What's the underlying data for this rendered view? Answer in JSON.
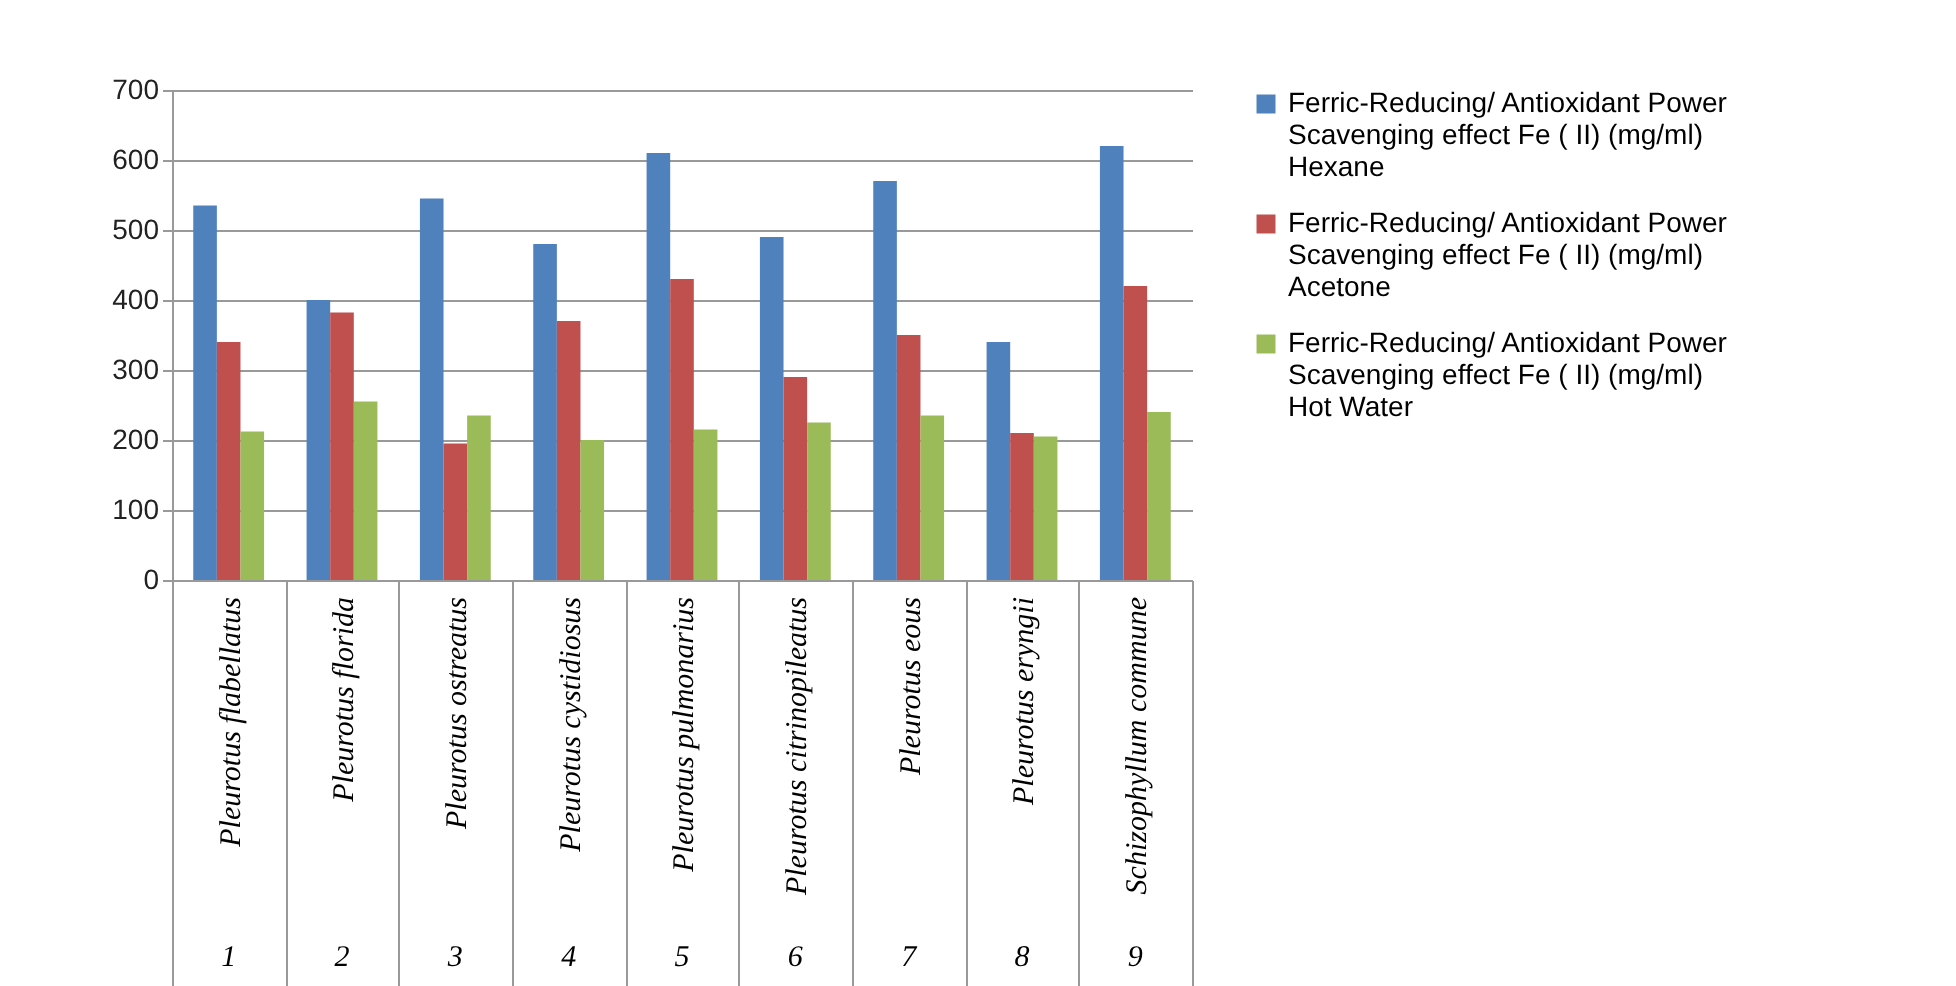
{
  "chart_data": {
    "type": "bar",
    "categories": [
      "Pleurotus flabellatus",
      "Pleurotus florida",
      "Pleurotus ostreatus",
      "Pleurotus cystidiosus",
      "Pleurotus pulmonarius",
      "Pleurotus citrinopileatus",
      "Pleurotus eous",
      "Pleurotus eryngii",
      "Schizophyllum commune"
    ],
    "annotations": [
      "1",
      "2",
      "3",
      "4",
      "5",
      "6",
      "7",
      "8",
      "9"
    ],
    "series": [
      {
        "name": "Ferric-Reducing/ Antioxidant Power  Scavenging effect  Fe ( II) (mg/ml)  Hexane",
        "color": "#4f81bd",
        "values": [
          535,
          400,
          545,
          480,
          610,
          490,
          570,
          340,
          620
        ]
      },
      {
        "name": "Ferric-Reducing/ Antioxidant Power  Scavenging effect  Fe ( II) (mg/ml)  Acetone",
        "color": "#c0504d",
        "values": [
          340,
          382,
          195,
          370,
          430,
          290,
          350,
          210,
          420
        ]
      },
      {
        "name": "Ferric-Reducing/ Antioxidant Power  Scavenging effect  Fe ( II) (mg/ml)  Hot Water",
        "color": "#9bbb59",
        "values": [
          212,
          255,
          235,
          200,
          215,
          225,
          235,
          205,
          240
        ]
      }
    ],
    "ylim": [
      0,
      700
    ],
    "yticks": [
      0,
      100,
      200,
      300,
      400,
      500,
      600,
      700
    ],
    "grid": "y",
    "legend": "right"
  }
}
